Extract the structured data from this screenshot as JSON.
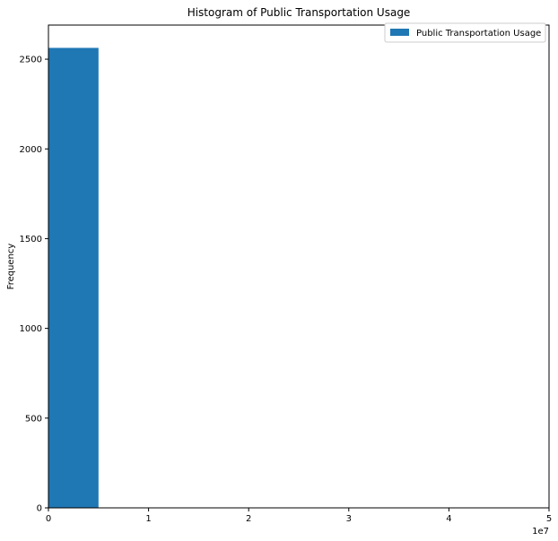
{
  "chart_data": {
    "type": "bar",
    "title": "Histogram of Public Transportation Usage",
    "xlabel": "",
    "ylabel": "Frequency",
    "x_offset_label": "1e7",
    "xlim": [
      0,
      5
    ],
    "ylim": [
      0,
      2690
    ],
    "x_ticks": [
      0,
      1,
      2,
      3,
      4,
      5
    ],
    "y_ticks": [
      0,
      500,
      1000,
      1500,
      2000,
      2500
    ],
    "bins": [
      {
        "x0": 0.0,
        "x1": 0.5,
        "count": 2563
      },
      {
        "x0": 0.5,
        "x1": 1.0,
        "count": 0
      },
      {
        "x0": 1.0,
        "x1": 1.5,
        "count": 0
      },
      {
        "x0": 1.5,
        "x1": 2.0,
        "count": 0
      },
      {
        "x0": 2.0,
        "x1": 2.5,
        "count": 0
      },
      {
        "x0": 2.5,
        "x1": 3.0,
        "count": 0
      },
      {
        "x0": 3.0,
        "x1": 3.5,
        "count": 0
      },
      {
        "x0": 3.5,
        "x1": 4.0,
        "count": 0
      },
      {
        "x0": 4.0,
        "x1": 4.5,
        "count": 0
      },
      {
        "x0": 4.5,
        "x1": 5.0,
        "count": 0
      }
    ],
    "series": [
      {
        "name": "Public Transportation Usage",
        "color": "#1f77b4"
      }
    ],
    "legend_position": "top-right",
    "grid": false
  }
}
